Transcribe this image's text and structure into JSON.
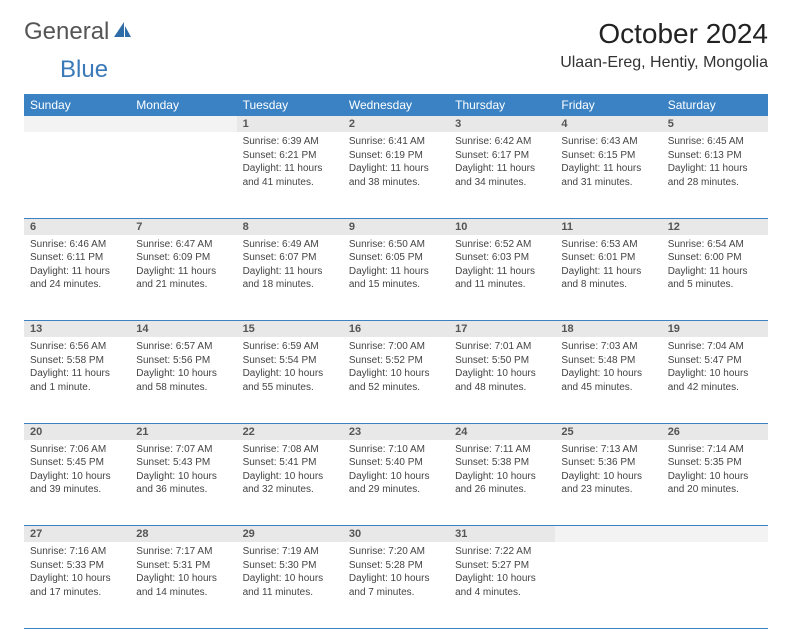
{
  "brand": {
    "general": "General",
    "blue": "Blue"
  },
  "title": "October 2024",
  "location": "Ulaan-Ereg, Hentiy, Mongolia",
  "colors": {
    "header_bg": "#3a82c4",
    "header_text": "#ffffff",
    "daynum_bg": "#e8e8e8",
    "border": "#3a82c4",
    "logo_blue": "#3a7ab8"
  },
  "weekdays": [
    "Sunday",
    "Monday",
    "Tuesday",
    "Wednesday",
    "Thursday",
    "Friday",
    "Saturday"
  ],
  "weeks": [
    [
      null,
      null,
      {
        "n": "1",
        "sr": "Sunrise: 6:39 AM",
        "ss": "Sunset: 6:21 PM",
        "dl": "Daylight: 11 hours and 41 minutes."
      },
      {
        "n": "2",
        "sr": "Sunrise: 6:41 AM",
        "ss": "Sunset: 6:19 PM",
        "dl": "Daylight: 11 hours and 38 minutes."
      },
      {
        "n": "3",
        "sr": "Sunrise: 6:42 AM",
        "ss": "Sunset: 6:17 PM",
        "dl": "Daylight: 11 hours and 34 minutes."
      },
      {
        "n": "4",
        "sr": "Sunrise: 6:43 AM",
        "ss": "Sunset: 6:15 PM",
        "dl": "Daylight: 11 hours and 31 minutes."
      },
      {
        "n": "5",
        "sr": "Sunrise: 6:45 AM",
        "ss": "Sunset: 6:13 PM",
        "dl": "Daylight: 11 hours and 28 minutes."
      }
    ],
    [
      {
        "n": "6",
        "sr": "Sunrise: 6:46 AM",
        "ss": "Sunset: 6:11 PM",
        "dl": "Daylight: 11 hours and 24 minutes."
      },
      {
        "n": "7",
        "sr": "Sunrise: 6:47 AM",
        "ss": "Sunset: 6:09 PM",
        "dl": "Daylight: 11 hours and 21 minutes."
      },
      {
        "n": "8",
        "sr": "Sunrise: 6:49 AM",
        "ss": "Sunset: 6:07 PM",
        "dl": "Daylight: 11 hours and 18 minutes."
      },
      {
        "n": "9",
        "sr": "Sunrise: 6:50 AM",
        "ss": "Sunset: 6:05 PM",
        "dl": "Daylight: 11 hours and 15 minutes."
      },
      {
        "n": "10",
        "sr": "Sunrise: 6:52 AM",
        "ss": "Sunset: 6:03 PM",
        "dl": "Daylight: 11 hours and 11 minutes."
      },
      {
        "n": "11",
        "sr": "Sunrise: 6:53 AM",
        "ss": "Sunset: 6:01 PM",
        "dl": "Daylight: 11 hours and 8 minutes."
      },
      {
        "n": "12",
        "sr": "Sunrise: 6:54 AM",
        "ss": "Sunset: 6:00 PM",
        "dl": "Daylight: 11 hours and 5 minutes."
      }
    ],
    [
      {
        "n": "13",
        "sr": "Sunrise: 6:56 AM",
        "ss": "Sunset: 5:58 PM",
        "dl": "Daylight: 11 hours and 1 minute."
      },
      {
        "n": "14",
        "sr": "Sunrise: 6:57 AM",
        "ss": "Sunset: 5:56 PM",
        "dl": "Daylight: 10 hours and 58 minutes."
      },
      {
        "n": "15",
        "sr": "Sunrise: 6:59 AM",
        "ss": "Sunset: 5:54 PM",
        "dl": "Daylight: 10 hours and 55 minutes."
      },
      {
        "n": "16",
        "sr": "Sunrise: 7:00 AM",
        "ss": "Sunset: 5:52 PM",
        "dl": "Daylight: 10 hours and 52 minutes."
      },
      {
        "n": "17",
        "sr": "Sunrise: 7:01 AM",
        "ss": "Sunset: 5:50 PM",
        "dl": "Daylight: 10 hours and 48 minutes."
      },
      {
        "n": "18",
        "sr": "Sunrise: 7:03 AM",
        "ss": "Sunset: 5:48 PM",
        "dl": "Daylight: 10 hours and 45 minutes."
      },
      {
        "n": "19",
        "sr": "Sunrise: 7:04 AM",
        "ss": "Sunset: 5:47 PM",
        "dl": "Daylight: 10 hours and 42 minutes."
      }
    ],
    [
      {
        "n": "20",
        "sr": "Sunrise: 7:06 AM",
        "ss": "Sunset: 5:45 PM",
        "dl": "Daylight: 10 hours and 39 minutes."
      },
      {
        "n": "21",
        "sr": "Sunrise: 7:07 AM",
        "ss": "Sunset: 5:43 PM",
        "dl": "Daylight: 10 hours and 36 minutes."
      },
      {
        "n": "22",
        "sr": "Sunrise: 7:08 AM",
        "ss": "Sunset: 5:41 PM",
        "dl": "Daylight: 10 hours and 32 minutes."
      },
      {
        "n": "23",
        "sr": "Sunrise: 7:10 AM",
        "ss": "Sunset: 5:40 PM",
        "dl": "Daylight: 10 hours and 29 minutes."
      },
      {
        "n": "24",
        "sr": "Sunrise: 7:11 AM",
        "ss": "Sunset: 5:38 PM",
        "dl": "Daylight: 10 hours and 26 minutes."
      },
      {
        "n": "25",
        "sr": "Sunrise: 7:13 AM",
        "ss": "Sunset: 5:36 PM",
        "dl": "Daylight: 10 hours and 23 minutes."
      },
      {
        "n": "26",
        "sr": "Sunrise: 7:14 AM",
        "ss": "Sunset: 5:35 PM",
        "dl": "Daylight: 10 hours and 20 minutes."
      }
    ],
    [
      {
        "n": "27",
        "sr": "Sunrise: 7:16 AM",
        "ss": "Sunset: 5:33 PM",
        "dl": "Daylight: 10 hours and 17 minutes."
      },
      {
        "n": "28",
        "sr": "Sunrise: 7:17 AM",
        "ss": "Sunset: 5:31 PM",
        "dl": "Daylight: 10 hours and 14 minutes."
      },
      {
        "n": "29",
        "sr": "Sunrise: 7:19 AM",
        "ss": "Sunset: 5:30 PM",
        "dl": "Daylight: 10 hours and 11 minutes."
      },
      {
        "n": "30",
        "sr": "Sunrise: 7:20 AM",
        "ss": "Sunset: 5:28 PM",
        "dl": "Daylight: 10 hours and 7 minutes."
      },
      {
        "n": "31",
        "sr": "Sunrise: 7:22 AM",
        "ss": "Sunset: 5:27 PM",
        "dl": "Daylight: 10 hours and 4 minutes."
      },
      null,
      null
    ]
  ]
}
